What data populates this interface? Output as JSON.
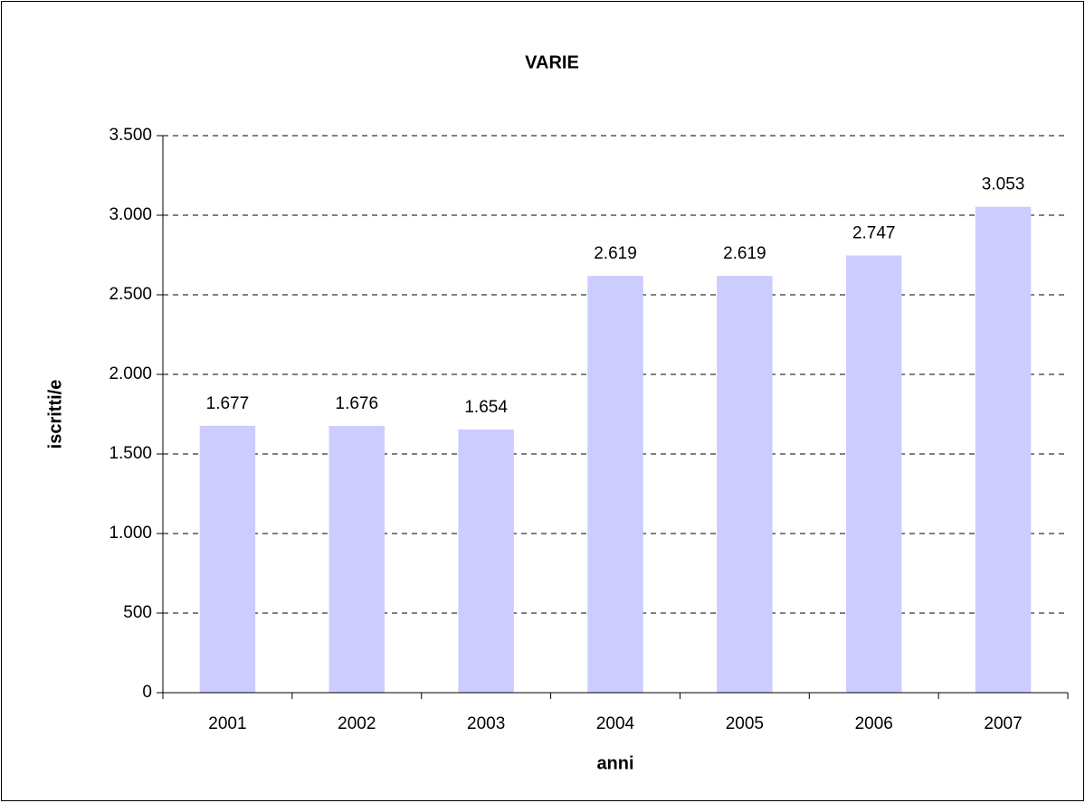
{
  "chart_data": {
    "type": "bar",
    "title": "VARIE",
    "x_label": "anni",
    "y_label": "iscritti/e",
    "categories": [
      "2001",
      "2002",
      "2003",
      "2004",
      "2005",
      "2006",
      "2007"
    ],
    "values": [
      1677,
      1676,
      1654,
      2619,
      2619,
      2747,
      3053
    ],
    "value_labels": [
      "1.677",
      "1.676",
      "1.654",
      "2.619",
      "2.619",
      "2.747",
      "3.053"
    ],
    "color": "#ccccff",
    "ylim": [
      0,
      3500
    ],
    "yticks": [
      0,
      500,
      {
        "value": 1000,
        "label": "1.000"
      },
      {
        "value": 1500,
        "label": "1.500"
      },
      {
        "value": 2000,
        "label": "2.000"
      },
      {
        "value": 2500,
        "label": "2.500"
      },
      {
        "value": 3000,
        "label": "3.000"
      },
      {
        "value": 3500,
        "label": "3.500"
      }
    ],
    "grid": true
  }
}
